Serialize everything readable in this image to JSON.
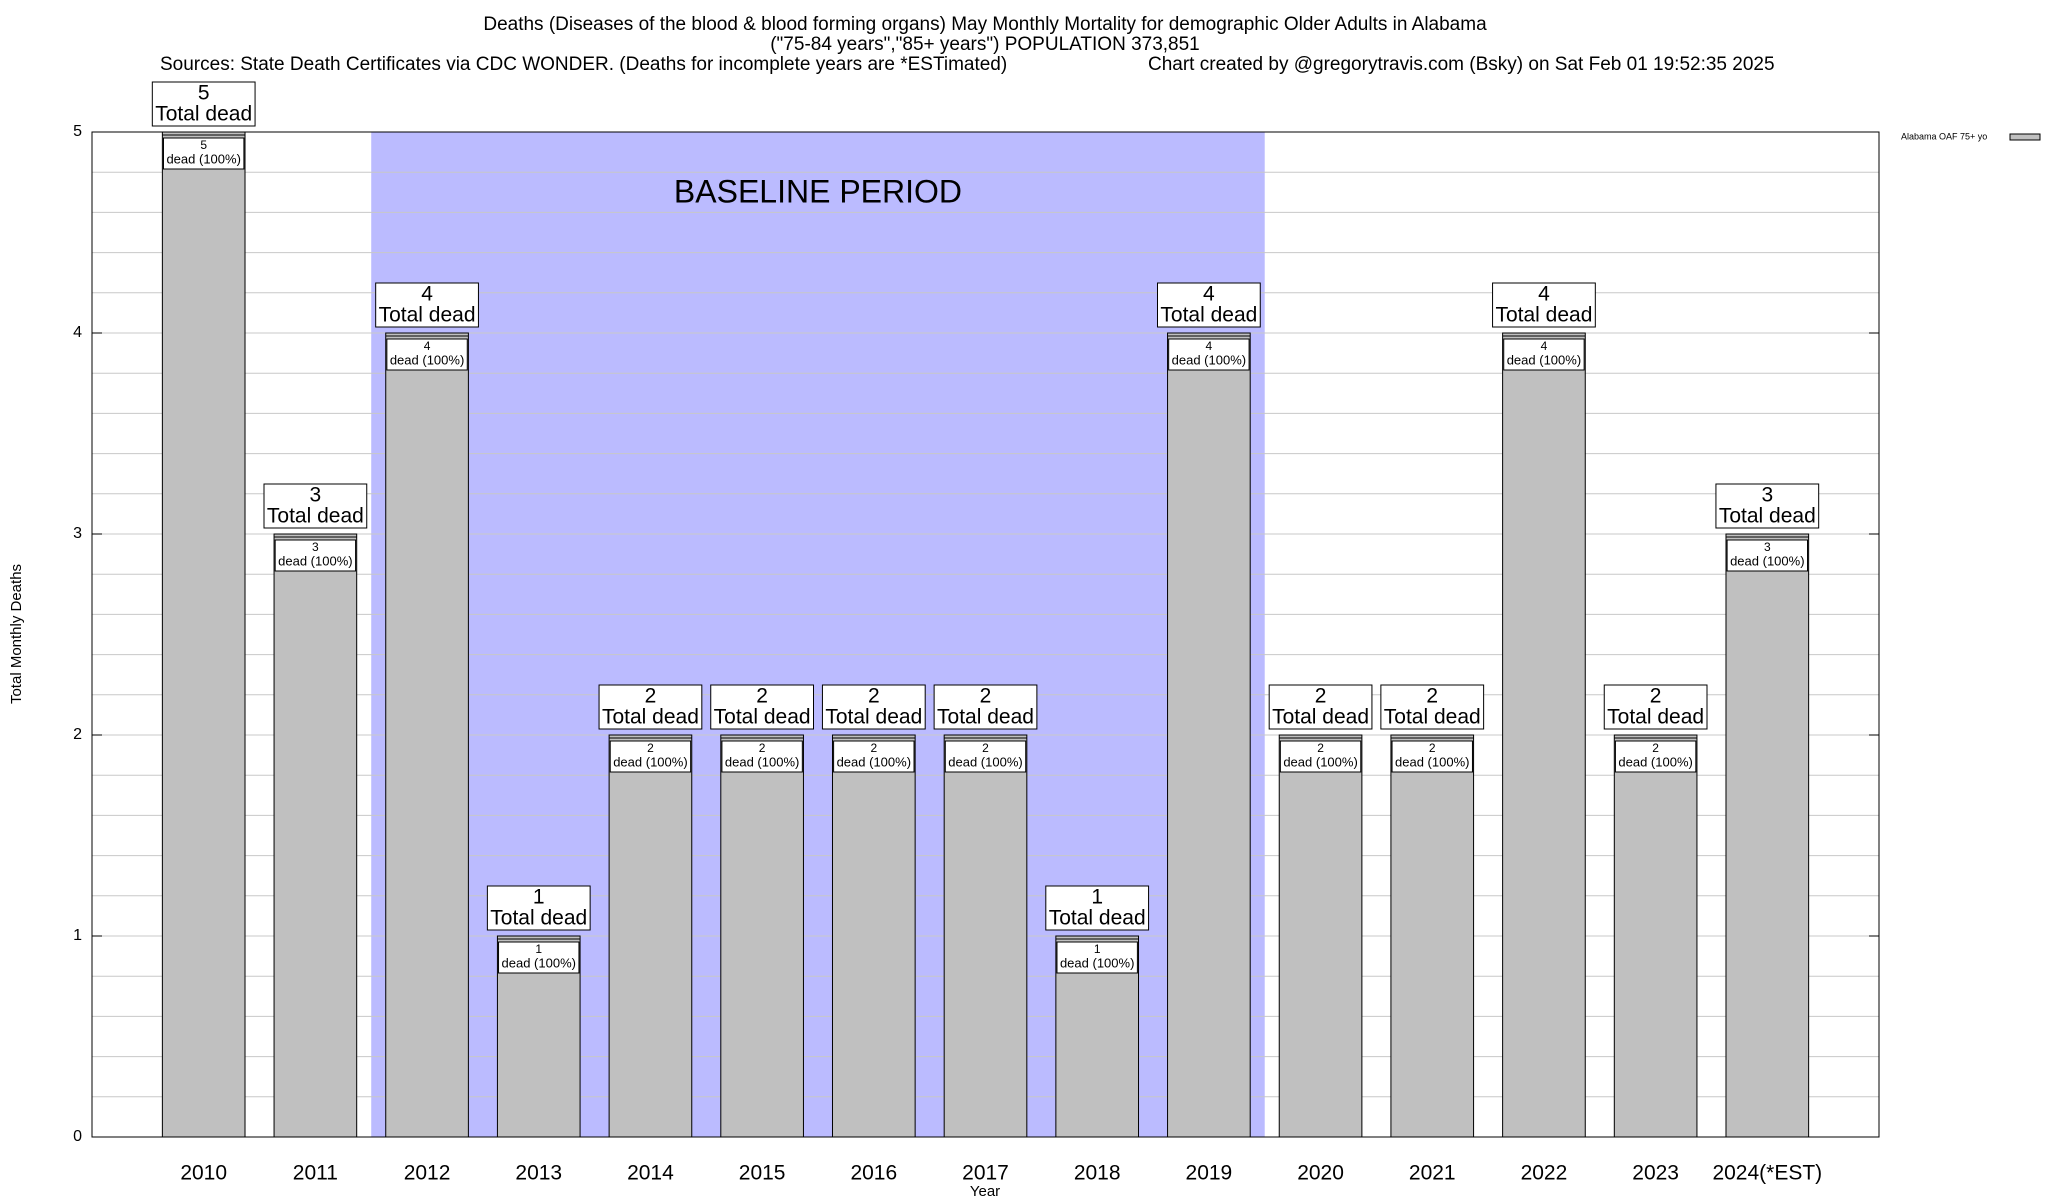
{
  "chart_data": {
    "type": "bar",
    "title": "Deaths (Diseases of the blood & blood forming organs) May Monthly Mortality for demographic Older Adults in Alabama",
    "subtitle": "(\"75-84 years\",\"85+ years\") POPULATION 373,851",
    "sources": "Sources: State Death Certificates via CDC WONDER. (Deaths for incomplete years are *ESTimated)",
    "credit": "Chart created by @gregorytravis.com (Bsky) on Sat Feb 01 19:52:35 2025",
    "y_label": "Total Monthly Deaths",
    "x_label": "Year",
    "categories": [
      "2010",
      "2011",
      "2012",
      "2013",
      "2014",
      "2015",
      "2016",
      "2017",
      "2018",
      "2019",
      "2020",
      "2021",
      "2022",
      "2023",
      "2024(*EST)"
    ],
    "series": [
      {
        "name": "Alabama OAF 75+ yo",
        "color": "#c0c0c0",
        "values": [
          5,
          3,
          4,
          1,
          2,
          2,
          2,
          2,
          1,
          4,
          2,
          2,
          4,
          2,
          3
        ]
      }
    ],
    "total_label": "Total dead",
    "share_label": "dead (100%)",
    "baseline": {
      "label": "BASELINE PERIOD",
      "start": "2012",
      "end": "2019",
      "color": "#bbbbff"
    },
    "ylim": [
      0,
      5
    ],
    "yticks": [
      0,
      1,
      2,
      3,
      4,
      5
    ],
    "minor_yticks": [
      0.2,
      0.4,
      0.6,
      0.8,
      1.2,
      1.4,
      1.6,
      1.8,
      2.2,
      2.4,
      2.6,
      2.8,
      3.2,
      3.4,
      3.6,
      3.8,
      4.2,
      4.4,
      4.6,
      4.8
    ],
    "grid": true,
    "legend": "top-right"
  }
}
